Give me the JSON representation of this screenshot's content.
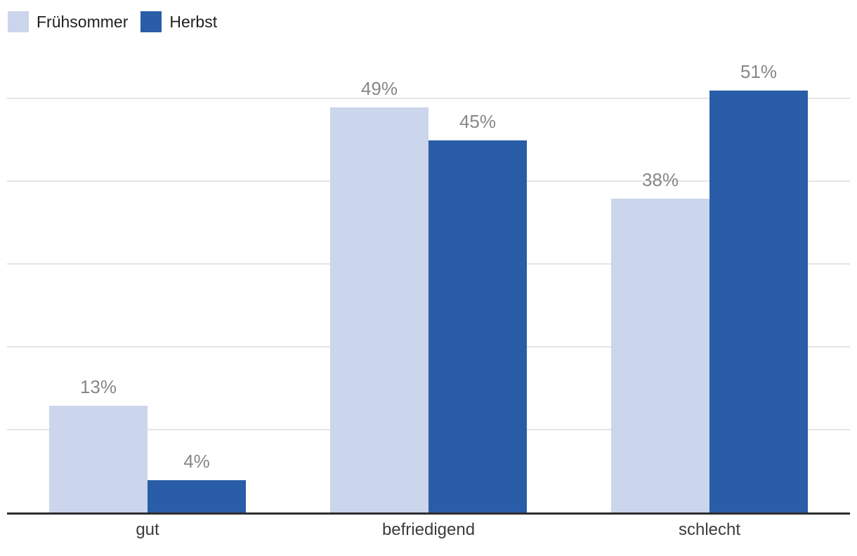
{
  "chart_data": {
    "type": "bar",
    "title": "",
    "xlabel": "",
    "ylabel": "",
    "categories": [
      "gut",
      "befriedigend",
      "schlecht"
    ],
    "series": [
      {
        "name": "Frühsommer",
        "color": "#cbd5eb",
        "values": [
          13,
          49,
          38
        ],
        "labels": [
          "13%",
          "49%",
          "38%"
        ]
      },
      {
        "name": "Herbst",
        "color": "#2a5da8",
        "values": [
          4,
          45,
          51
        ],
        "labels": [
          "4%",
          "45%",
          "51%"
        ]
      }
    ],
    "ylim": [
      0,
      55
    ],
    "gridline_values": [
      10,
      20,
      30,
      40,
      50
    ],
    "grid": true,
    "y_tick_labels_shown": false,
    "legend_position": "top-left",
    "value_label_color": "#878787",
    "category_label_color": "#3c3c3c",
    "gridline_color": "#e4e4e4",
    "axis_line_color": "#2e2e2e",
    "background_color": "#ffffff"
  }
}
